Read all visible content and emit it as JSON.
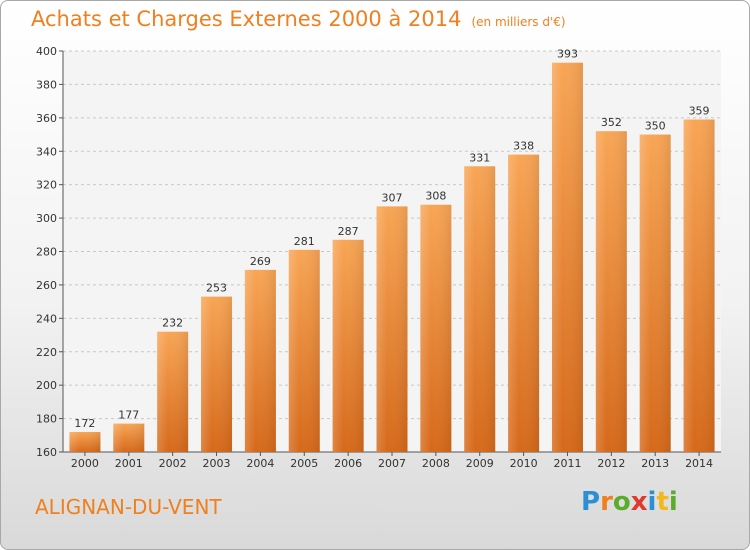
{
  "chart_data": {
    "type": "bar",
    "title": "Achats et Charges Externes 2000 à 2014",
    "subtitle": "(en milliers d'€)",
    "categories": [
      "2000",
      "2001",
      "2002",
      "2003",
      "2004",
      "2005",
      "2006",
      "2007",
      "2008",
      "2009",
      "2010",
      "2011",
      "2012",
      "2013",
      "2014"
    ],
    "values": [
      172,
      177,
      232,
      253,
      269,
      281,
      287,
      307,
      308,
      331,
      338,
      393,
      352,
      350,
      359
    ],
    "ylim": [
      160,
      400
    ],
    "yticks": [
      160,
      180,
      200,
      220,
      240,
      260,
      280,
      300,
      320,
      340,
      360,
      380,
      400
    ],
    "grid": true,
    "bar_color": "#f07f1e"
  },
  "place_name": "ALIGNAN-DU-VENT",
  "logo": {
    "letters": [
      "P",
      "r",
      "o",
      "x",
      "i",
      "t",
      "i"
    ],
    "colors": [
      "#2a8fd4",
      "#f07f1e",
      "#5aac2c",
      "#e03a2c",
      "#2a8fd4",
      "#f2b81c",
      "#5aac2c"
    ]
  }
}
